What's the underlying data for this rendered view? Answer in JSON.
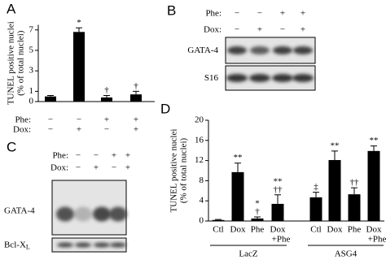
{
  "chart_data": [
    {
      "type": "bar",
      "panel_label": "A",
      "ylabel": [
        "TUNEL positive nuclei",
        "(% of total nuclei)"
      ],
      "categories": [
        null,
        null,
        null,
        null
      ],
      "values": [
        0.5,
        6.8,
        0.4,
        0.7
      ],
      "errors": [
        0.1,
        0.4,
        0.2,
        0.3
      ],
      "annotations": [
        null,
        [
          "*"
        ],
        [
          "†"
        ],
        [
          "†"
        ]
      ],
      "conditions": [
        {
          "label": "Phe:",
          "signs": [
            "−",
            "−",
            "+",
            "+"
          ]
        },
        {
          "label": "Dox:",
          "signs": [
            "−",
            "+",
            "−",
            "+"
          ]
        }
      ],
      "color": "#000000",
      "ylim": [
        0,
        7.5
      ],
      "yticks": [
        0,
        1,
        3,
        5,
        7
      ]
    },
    {
      "type": "bar",
      "panel_label": "D",
      "ylabel": [
        "TUNEL positive nuclei",
        "(% of total nuclei)"
      ],
      "categories": [
        "Ctl",
        "Dox",
        "Phe",
        "Dox",
        "Ctl",
        "Dox",
        "Phe",
        "Dox"
      ],
      "category_sublabels": [
        null,
        null,
        null,
        "+Phe",
        null,
        null,
        null,
        "+Phe"
      ],
      "groups": [
        "LacZ",
        "ASG4"
      ],
      "values": [
        0.2,
        9.7,
        0.5,
        3.4,
        4.7,
        12.1,
        5.3,
        13.9
      ],
      "errors": [
        0.1,
        1.8,
        0.3,
        1.8,
        1.0,
        1.8,
        1.3,
        1.0
      ],
      "annotations": [
        null,
        [
          "**"
        ],
        [
          "*",
          "†"
        ],
        [
          "**",
          "††"
        ],
        [
          "‡"
        ],
        [
          "**"
        ],
        [
          "††"
        ],
        [
          "**"
        ]
      ],
      "color": "#000000",
      "ylim": [
        0,
        20
      ],
      "yticks": [
        0,
        4,
        8,
        12,
        16,
        20
      ]
    }
  ],
  "blots": [
    {
      "panel_label": "B",
      "conditions": [
        {
          "label": "Phe:",
          "signs": [
            "−",
            "−",
            "+",
            "+"
          ]
        },
        {
          "label": "Dox:",
          "signs": [
            "−",
            "+",
            "−",
            "+"
          ]
        }
      ],
      "bands": [
        {
          "text": "GATA-4"
        },
        {
          "text": "S16"
        }
      ]
    },
    {
      "panel_label": "C",
      "conditions": [
        {
          "label": "Phe:",
          "signs": [
            "−",
            "−",
            "+",
            "+"
          ]
        },
        {
          "label": "Dox:",
          "signs": [
            "−",
            "+",
            "−",
            "+"
          ]
        }
      ],
      "bands": [
        {
          "text": "GATA-4"
        },
        {
          "text": "Bcl-X",
          "subscript": "L"
        }
      ]
    }
  ]
}
